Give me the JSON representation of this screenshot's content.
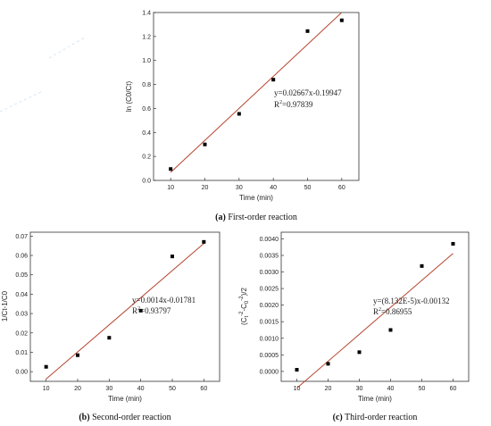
{
  "chart_data": [
    {
      "id": "a",
      "type": "scatter",
      "caption_letter": "(a)",
      "caption_text": " First-order reaction",
      "xlabel": "Time (min)",
      "ylabel": "ln (C0/Ct)",
      "xlim": [
        5,
        65
      ],
      "ylim": [
        0,
        1.4
      ],
      "xticks": [
        10,
        20,
        30,
        40,
        50,
        60
      ],
      "yticks": [
        0.0,
        0.2,
        0.4,
        0.6,
        0.8,
        1.0,
        1.2,
        1.4
      ],
      "yticklabels": [
        "0.0",
        "0.2",
        "0.4",
        "0.6",
        "0.8",
        "1.0",
        "1.2",
        "1.4"
      ],
      "x": [
        10,
        20,
        30,
        40,
        50,
        60
      ],
      "y": [
        0.095,
        0.3,
        0.555,
        0.84,
        1.245,
        1.335
      ],
      "fit": {
        "slope": 0.02667,
        "intercept": -0.19947,
        "x_range": [
          10,
          60
        ]
      },
      "equation": "y=0.02667x-0.19947",
      "r2_label": "R",
      "r2_value": "=0.97839",
      "marker_color": "#000000",
      "fit_color": "#b5452e"
    },
    {
      "id": "b",
      "type": "scatter",
      "caption_letter": "(b)",
      "caption_text": " Second-order reaction",
      "xlabel": "Time (min)",
      "ylabel": "1/Ct-1/C0",
      "xlim": [
        5,
        65
      ],
      "ylim": [
        -0.005,
        0.072
      ],
      "xticks": [
        10,
        20,
        30,
        40,
        50,
        60
      ],
      "yticks": [
        0.0,
        0.01,
        0.02,
        0.03,
        0.04,
        0.05,
        0.06,
        0.07
      ],
      "yticklabels": [
        "0.00",
        "0.01",
        "0.02",
        "0.03",
        "0.04",
        "0.05",
        "0.06",
        "0.07"
      ],
      "x": [
        10,
        20,
        30,
        40,
        50,
        60
      ],
      "y": [
        0.0025,
        0.0085,
        0.0175,
        0.0315,
        0.0595,
        0.067
      ],
      "fit": {
        "slope": 0.0014,
        "intercept": -0.01781,
        "x_range": [
          10,
          60
        ]
      },
      "equation": "y=0.0014x-0.01781",
      "r2_label": "R",
      "r2_value": "=0.93797",
      "marker_color": "#000000",
      "fit_color": "#b5452e"
    },
    {
      "id": "c",
      "type": "scatter",
      "caption_letter": "(c)",
      "caption_text": " Third-order reaction",
      "xlabel": "Time (min)",
      "ylabel": "(C",
      "xlim": [
        5,
        65
      ],
      "ylim": [
        -0.0003,
        0.0042
      ],
      "xticks": [
        10,
        20,
        30,
        40,
        50,
        60
      ],
      "yticks": [
        0.0,
        0.0005,
        0.001,
        0.0015,
        0.002,
        0.0025,
        0.003,
        0.0035,
        0.004
      ],
      "yticklabels": [
        "0.0000",
        "0.0005",
        "0.0010",
        "0.0015",
        "0.0020",
        "0.0025",
        "0.0030",
        "0.0035",
        "0.0040"
      ],
      "x": [
        10,
        20,
        30,
        40,
        50,
        60
      ],
      "y": [
        5e-05,
        0.00023,
        0.00058,
        0.00125,
        0.00318,
        0.00385
      ],
      "fit": {
        "slope": 8.132e-05,
        "intercept": -0.00132,
        "x_range": [
          10,
          60
        ]
      },
      "equation": "y=(8.132E-5)x-0.00132",
      "r2_label": "R",
      "r2_value": "=0.86955",
      "marker_color": "#000000",
      "fit_color": "#b5452e"
    }
  ],
  "ylabel_c_parts": {
    "t": "t",
    "exp": "-2",
    "minus": "-C",
    "zero": "0",
    "close": ")/2"
  },
  "superscript_2": "2"
}
